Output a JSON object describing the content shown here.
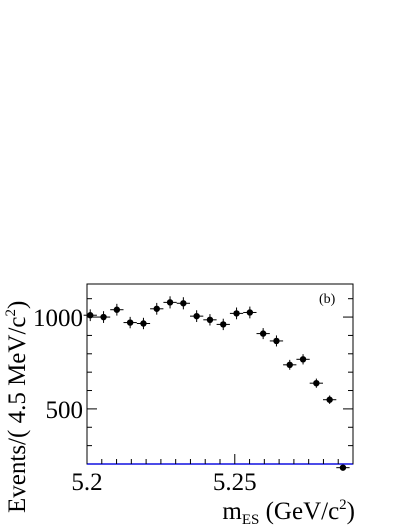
{
  "chart_data": {
    "type": "scatter",
    "panel_label": "(b)",
    "xlabel": {
      "main": "m",
      "sub": "ES",
      "unit_pre": " (GeV/c",
      "unit_sup": "2",
      "unit_post": ")"
    },
    "ylabel": {
      "pre": "Events/( 4.5 MeV/c",
      "sup": "2",
      "post": ")"
    },
    "xlim": [
      5.2,
      5.29
    ],
    "ylim": [
      200,
      1180
    ],
    "x_ticks": [
      {
        "value": 5.2,
        "label": "5.2"
      },
      {
        "value": 5.25,
        "label": "5.25"
      }
    ],
    "y_ticks": [
      {
        "value": 500,
        "label": "500"
      },
      {
        "value": 1000,
        "label": "1000"
      }
    ],
    "bin_half_width": 0.00225,
    "series": [
      {
        "kind": "points",
        "color": "#000000",
        "x": [
          5.2011,
          5.2056,
          5.2101,
          5.2146,
          5.2191,
          5.2236,
          5.2281,
          5.2326,
          5.2371,
          5.2416,
          5.2461,
          5.2506,
          5.2551,
          5.2596,
          5.2641,
          5.2686,
          5.2731,
          5.2776,
          5.2821,
          5.2866
        ],
        "y": [
          1010,
          1000,
          1040,
          970,
          965,
          1045,
          1080,
          1075,
          1005,
          985,
          960,
          1020,
          1025,
          910,
          870,
          740,
          770,
          640,
          550,
          180
        ],
        "yerr": [
          32,
          32,
          32,
          31,
          31,
          32,
          33,
          33,
          32,
          31,
          31,
          32,
          32,
          30,
          30,
          27,
          28,
          25,
          23,
          14
        ]
      },
      {
        "kind": "fit_curve",
        "color": "#1010e0",
        "model": "argus",
        "endpoint": 5.29,
        "norm": 1046,
        "shape": -4.87
      }
    ]
  }
}
